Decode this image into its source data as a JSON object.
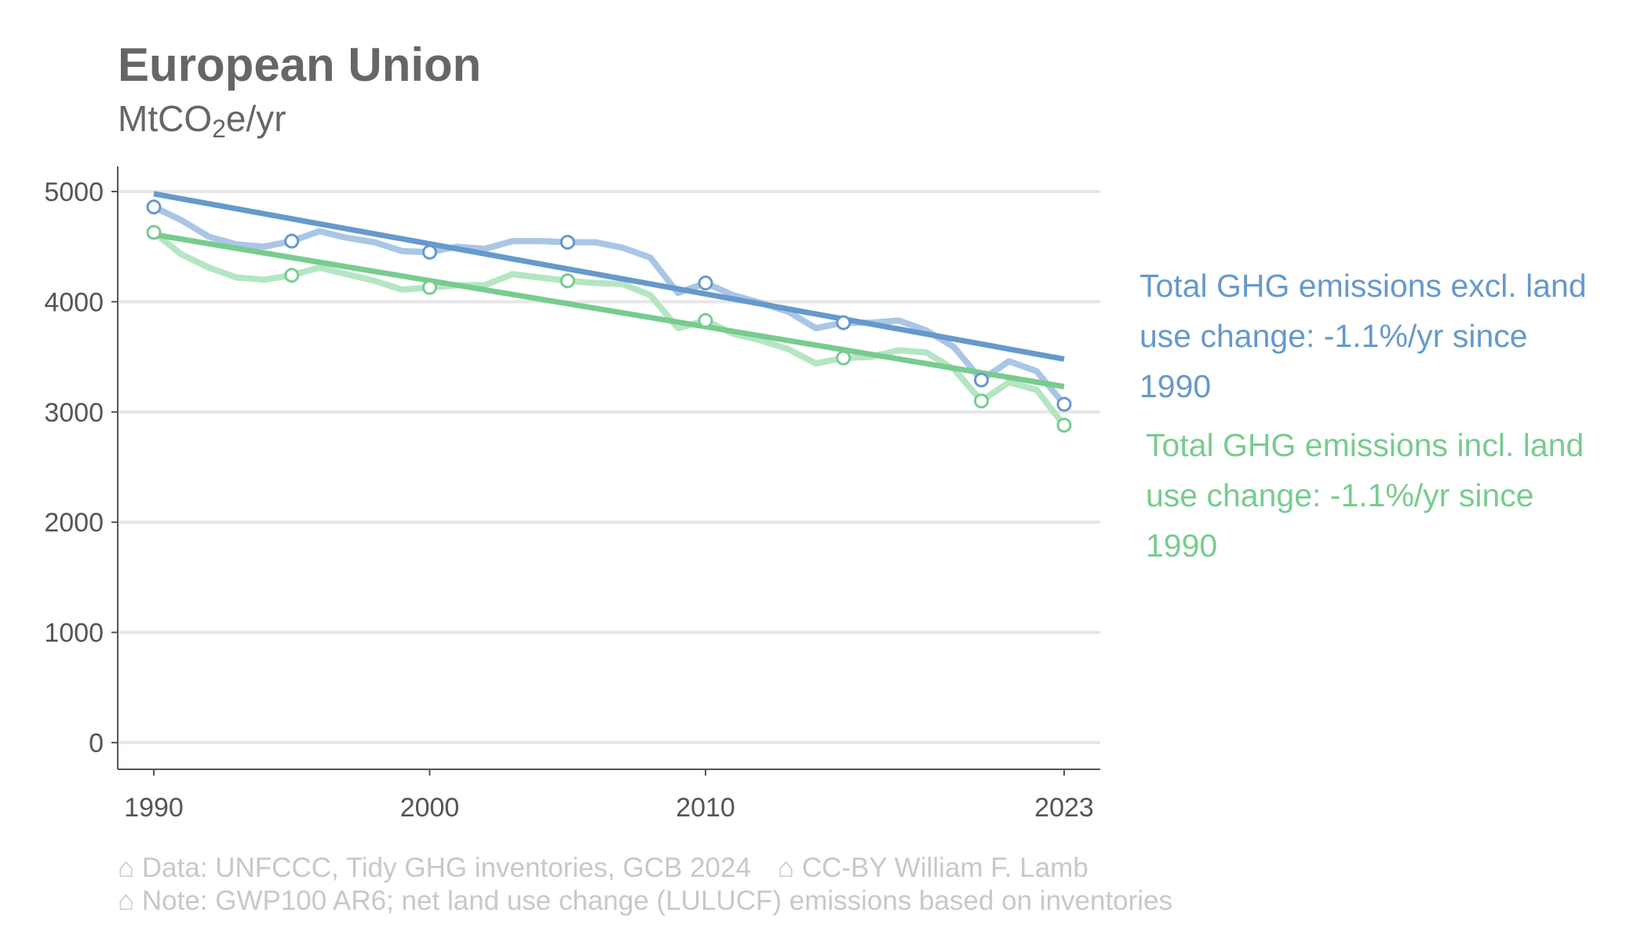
{
  "title": "European Union",
  "subtitle": {
    "prefix": "MtCO",
    "subscript": "2",
    "suffix": "e/yr"
  },
  "captions": {
    "data_source": "⌂ Data: UNFCCC, Tidy GHG inventories, GCB 2024",
    "license": "⌂ CC-BY William F. Lamb",
    "note": "⌂ Note: GWP100 AR6; net land use change (LULUCF) emissions based on inventories"
  },
  "colors": {
    "excl_raw": "#aac6e6",
    "excl_trend": "#6699cc",
    "incl_raw": "#b5e6c4",
    "incl_trend": "#77cc8f",
    "axis": "#555555",
    "grid": "#e6e6e6",
    "tick_text": "#555555"
  },
  "chart_data": {
    "type": "line",
    "xlim": [
      1990,
      2023
    ],
    "ylim": [
      0,
      5000
    ],
    "x_ticks": [
      1990,
      2000,
      2010,
      2023
    ],
    "x_tick_labels": [
      "1990",
      "2000",
      "2010",
      "2023"
    ],
    "y_ticks": [
      0,
      1000,
      2000,
      3000,
      4000,
      5000
    ],
    "y_tick_labels": [
      "0",
      "1000",
      "2000",
      "3000",
      "4000",
      "5000"
    ],
    "grid": "horizontal",
    "x": [
      1990,
      1991,
      1992,
      1993,
      1994,
      1995,
      1996,
      1997,
      1998,
      1999,
      2000,
      2001,
      2002,
      2003,
      2004,
      2005,
      2006,
      2007,
      2008,
      2009,
      2010,
      2011,
      2012,
      2013,
      2014,
      2015,
      2016,
      2017,
      2018,
      2019,
      2020,
      2021,
      2022,
      2023
    ],
    "series": [
      {
        "name": "Total GHG emissions excl. land use change: -1.1%/yr since 1990",
        "label_lines": [
          "Total GHG emissions excl. land",
          "use change: -1.1%/yr since",
          "1990"
        ],
        "values": [
          4860,
          4740,
          4590,
          4520,
          4500,
          4550,
          4640,
          4580,
          4540,
          4460,
          4450,
          4500,
          4480,
          4550,
          4550,
          4540,
          4540,
          4490,
          4400,
          4080,
          4170,
          4060,
          3990,
          3910,
          3760,
          3810,
          3810,
          3830,
          3740,
          3590,
          3290,
          3460,
          3370,
          3070
        ],
        "markers_x": [
          1990,
          1995,
          2000,
          2005,
          2010,
          2015,
          2020,
          2023
        ],
        "markers_y": [
          4860,
          4550,
          4450,
          4540,
          4170,
          3810,
          3290,
          3070
        ],
        "trend": {
          "start": [
            1990,
            4980
          ],
          "end": [
            2023,
            3480
          ]
        }
      },
      {
        "name": "Total GHG emissions incl. land use change: -1.1%/yr since 1990",
        "label_lines": [
          "Total GHG emissions incl. land",
          "use change: -1.1%/yr since",
          "1990"
        ],
        "values": [
          4630,
          4430,
          4310,
          4220,
          4200,
          4240,
          4310,
          4250,
          4190,
          4110,
          4130,
          4150,
          4150,
          4250,
          4220,
          4190,
          4170,
          4160,
          4060,
          3760,
          3830,
          3710,
          3650,
          3570,
          3440,
          3490,
          3500,
          3560,
          3540,
          3390,
          3100,
          3270,
          3200,
          2880
        ],
        "markers_x": [
          1990,
          1995,
          2000,
          2005,
          2010,
          2015,
          2020,
          2023
        ],
        "markers_y": [
          4630,
          4240,
          4130,
          4190,
          3830,
          3490,
          3100,
          2880
        ],
        "trend": {
          "start": [
            1990,
            4610
          ],
          "end": [
            2023,
            3230
          ]
        }
      }
    ]
  }
}
